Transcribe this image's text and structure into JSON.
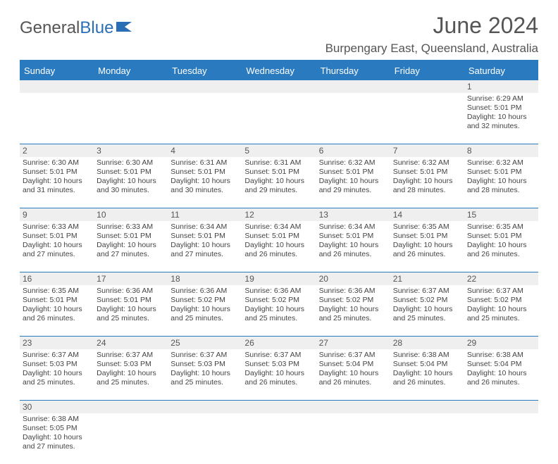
{
  "brand": {
    "part1": "General",
    "part2": "Blue"
  },
  "title": "June 2024",
  "location": "Burpengary East, Queensland, Australia",
  "colors": {
    "header_bar": "#2a7ac0",
    "daynum_bg": "#efefef",
    "text": "#444444",
    "title_text": "#555555"
  },
  "weekdays": [
    "Sunday",
    "Monday",
    "Tuesday",
    "Wednesday",
    "Thursday",
    "Friday",
    "Saturday"
  ],
  "weeks": [
    {
      "nums": [
        "",
        "",
        "",
        "",
        "",
        "",
        "1"
      ],
      "days": [
        null,
        null,
        null,
        null,
        null,
        null,
        {
          "sunrise": "Sunrise: 6:29 AM",
          "sunset": "Sunset: 5:01 PM",
          "day1": "Daylight: 10 hours",
          "day2": "and 32 minutes."
        }
      ]
    },
    {
      "nums": [
        "2",
        "3",
        "4",
        "5",
        "6",
        "7",
        "8"
      ],
      "days": [
        {
          "sunrise": "Sunrise: 6:30 AM",
          "sunset": "Sunset: 5:01 PM",
          "day1": "Daylight: 10 hours",
          "day2": "and 31 minutes."
        },
        {
          "sunrise": "Sunrise: 6:30 AM",
          "sunset": "Sunset: 5:01 PM",
          "day1": "Daylight: 10 hours",
          "day2": "and 30 minutes."
        },
        {
          "sunrise": "Sunrise: 6:31 AM",
          "sunset": "Sunset: 5:01 PM",
          "day1": "Daylight: 10 hours",
          "day2": "and 30 minutes."
        },
        {
          "sunrise": "Sunrise: 6:31 AM",
          "sunset": "Sunset: 5:01 PM",
          "day1": "Daylight: 10 hours",
          "day2": "and 29 minutes."
        },
        {
          "sunrise": "Sunrise: 6:32 AM",
          "sunset": "Sunset: 5:01 PM",
          "day1": "Daylight: 10 hours",
          "day2": "and 29 minutes."
        },
        {
          "sunrise": "Sunrise: 6:32 AM",
          "sunset": "Sunset: 5:01 PM",
          "day1": "Daylight: 10 hours",
          "day2": "and 28 minutes."
        },
        {
          "sunrise": "Sunrise: 6:32 AM",
          "sunset": "Sunset: 5:01 PM",
          "day1": "Daylight: 10 hours",
          "day2": "and 28 minutes."
        }
      ]
    },
    {
      "nums": [
        "9",
        "10",
        "11",
        "12",
        "13",
        "14",
        "15"
      ],
      "days": [
        {
          "sunrise": "Sunrise: 6:33 AM",
          "sunset": "Sunset: 5:01 PM",
          "day1": "Daylight: 10 hours",
          "day2": "and 27 minutes."
        },
        {
          "sunrise": "Sunrise: 6:33 AM",
          "sunset": "Sunset: 5:01 PM",
          "day1": "Daylight: 10 hours",
          "day2": "and 27 minutes."
        },
        {
          "sunrise": "Sunrise: 6:34 AM",
          "sunset": "Sunset: 5:01 PM",
          "day1": "Daylight: 10 hours",
          "day2": "and 27 minutes."
        },
        {
          "sunrise": "Sunrise: 6:34 AM",
          "sunset": "Sunset: 5:01 PM",
          "day1": "Daylight: 10 hours",
          "day2": "and 26 minutes."
        },
        {
          "sunrise": "Sunrise: 6:34 AM",
          "sunset": "Sunset: 5:01 PM",
          "day1": "Daylight: 10 hours",
          "day2": "and 26 minutes."
        },
        {
          "sunrise": "Sunrise: 6:35 AM",
          "sunset": "Sunset: 5:01 PM",
          "day1": "Daylight: 10 hours",
          "day2": "and 26 minutes."
        },
        {
          "sunrise": "Sunrise: 6:35 AM",
          "sunset": "Sunset: 5:01 PM",
          "day1": "Daylight: 10 hours",
          "day2": "and 26 minutes."
        }
      ]
    },
    {
      "nums": [
        "16",
        "17",
        "18",
        "19",
        "20",
        "21",
        "22"
      ],
      "days": [
        {
          "sunrise": "Sunrise: 6:35 AM",
          "sunset": "Sunset: 5:01 PM",
          "day1": "Daylight: 10 hours",
          "day2": "and 26 minutes."
        },
        {
          "sunrise": "Sunrise: 6:36 AM",
          "sunset": "Sunset: 5:01 PM",
          "day1": "Daylight: 10 hours",
          "day2": "and 25 minutes."
        },
        {
          "sunrise": "Sunrise: 6:36 AM",
          "sunset": "Sunset: 5:02 PM",
          "day1": "Daylight: 10 hours",
          "day2": "and 25 minutes."
        },
        {
          "sunrise": "Sunrise: 6:36 AM",
          "sunset": "Sunset: 5:02 PM",
          "day1": "Daylight: 10 hours",
          "day2": "and 25 minutes."
        },
        {
          "sunrise": "Sunrise: 6:36 AM",
          "sunset": "Sunset: 5:02 PM",
          "day1": "Daylight: 10 hours",
          "day2": "and 25 minutes."
        },
        {
          "sunrise": "Sunrise: 6:37 AM",
          "sunset": "Sunset: 5:02 PM",
          "day1": "Daylight: 10 hours",
          "day2": "and 25 minutes."
        },
        {
          "sunrise": "Sunrise: 6:37 AM",
          "sunset": "Sunset: 5:02 PM",
          "day1": "Daylight: 10 hours",
          "day2": "and 25 minutes."
        }
      ]
    },
    {
      "nums": [
        "23",
        "24",
        "25",
        "26",
        "27",
        "28",
        "29"
      ],
      "days": [
        {
          "sunrise": "Sunrise: 6:37 AM",
          "sunset": "Sunset: 5:03 PM",
          "day1": "Daylight: 10 hours",
          "day2": "and 25 minutes."
        },
        {
          "sunrise": "Sunrise: 6:37 AM",
          "sunset": "Sunset: 5:03 PM",
          "day1": "Daylight: 10 hours",
          "day2": "and 25 minutes."
        },
        {
          "sunrise": "Sunrise: 6:37 AM",
          "sunset": "Sunset: 5:03 PM",
          "day1": "Daylight: 10 hours",
          "day2": "and 25 minutes."
        },
        {
          "sunrise": "Sunrise: 6:37 AM",
          "sunset": "Sunset: 5:03 PM",
          "day1": "Daylight: 10 hours",
          "day2": "and 26 minutes."
        },
        {
          "sunrise": "Sunrise: 6:37 AM",
          "sunset": "Sunset: 5:04 PM",
          "day1": "Daylight: 10 hours",
          "day2": "and 26 minutes."
        },
        {
          "sunrise": "Sunrise: 6:38 AM",
          "sunset": "Sunset: 5:04 PM",
          "day1": "Daylight: 10 hours",
          "day2": "and 26 minutes."
        },
        {
          "sunrise": "Sunrise: 6:38 AM",
          "sunset": "Sunset: 5:04 PM",
          "day1": "Daylight: 10 hours",
          "day2": "and 26 minutes."
        }
      ]
    },
    {
      "nums": [
        "30",
        "",
        "",
        "",
        "",
        "",
        ""
      ],
      "days": [
        {
          "sunrise": "Sunrise: 6:38 AM",
          "sunset": "Sunset: 5:05 PM",
          "day1": "Daylight: 10 hours",
          "day2": "and 27 minutes."
        },
        null,
        null,
        null,
        null,
        null,
        null
      ]
    }
  ]
}
